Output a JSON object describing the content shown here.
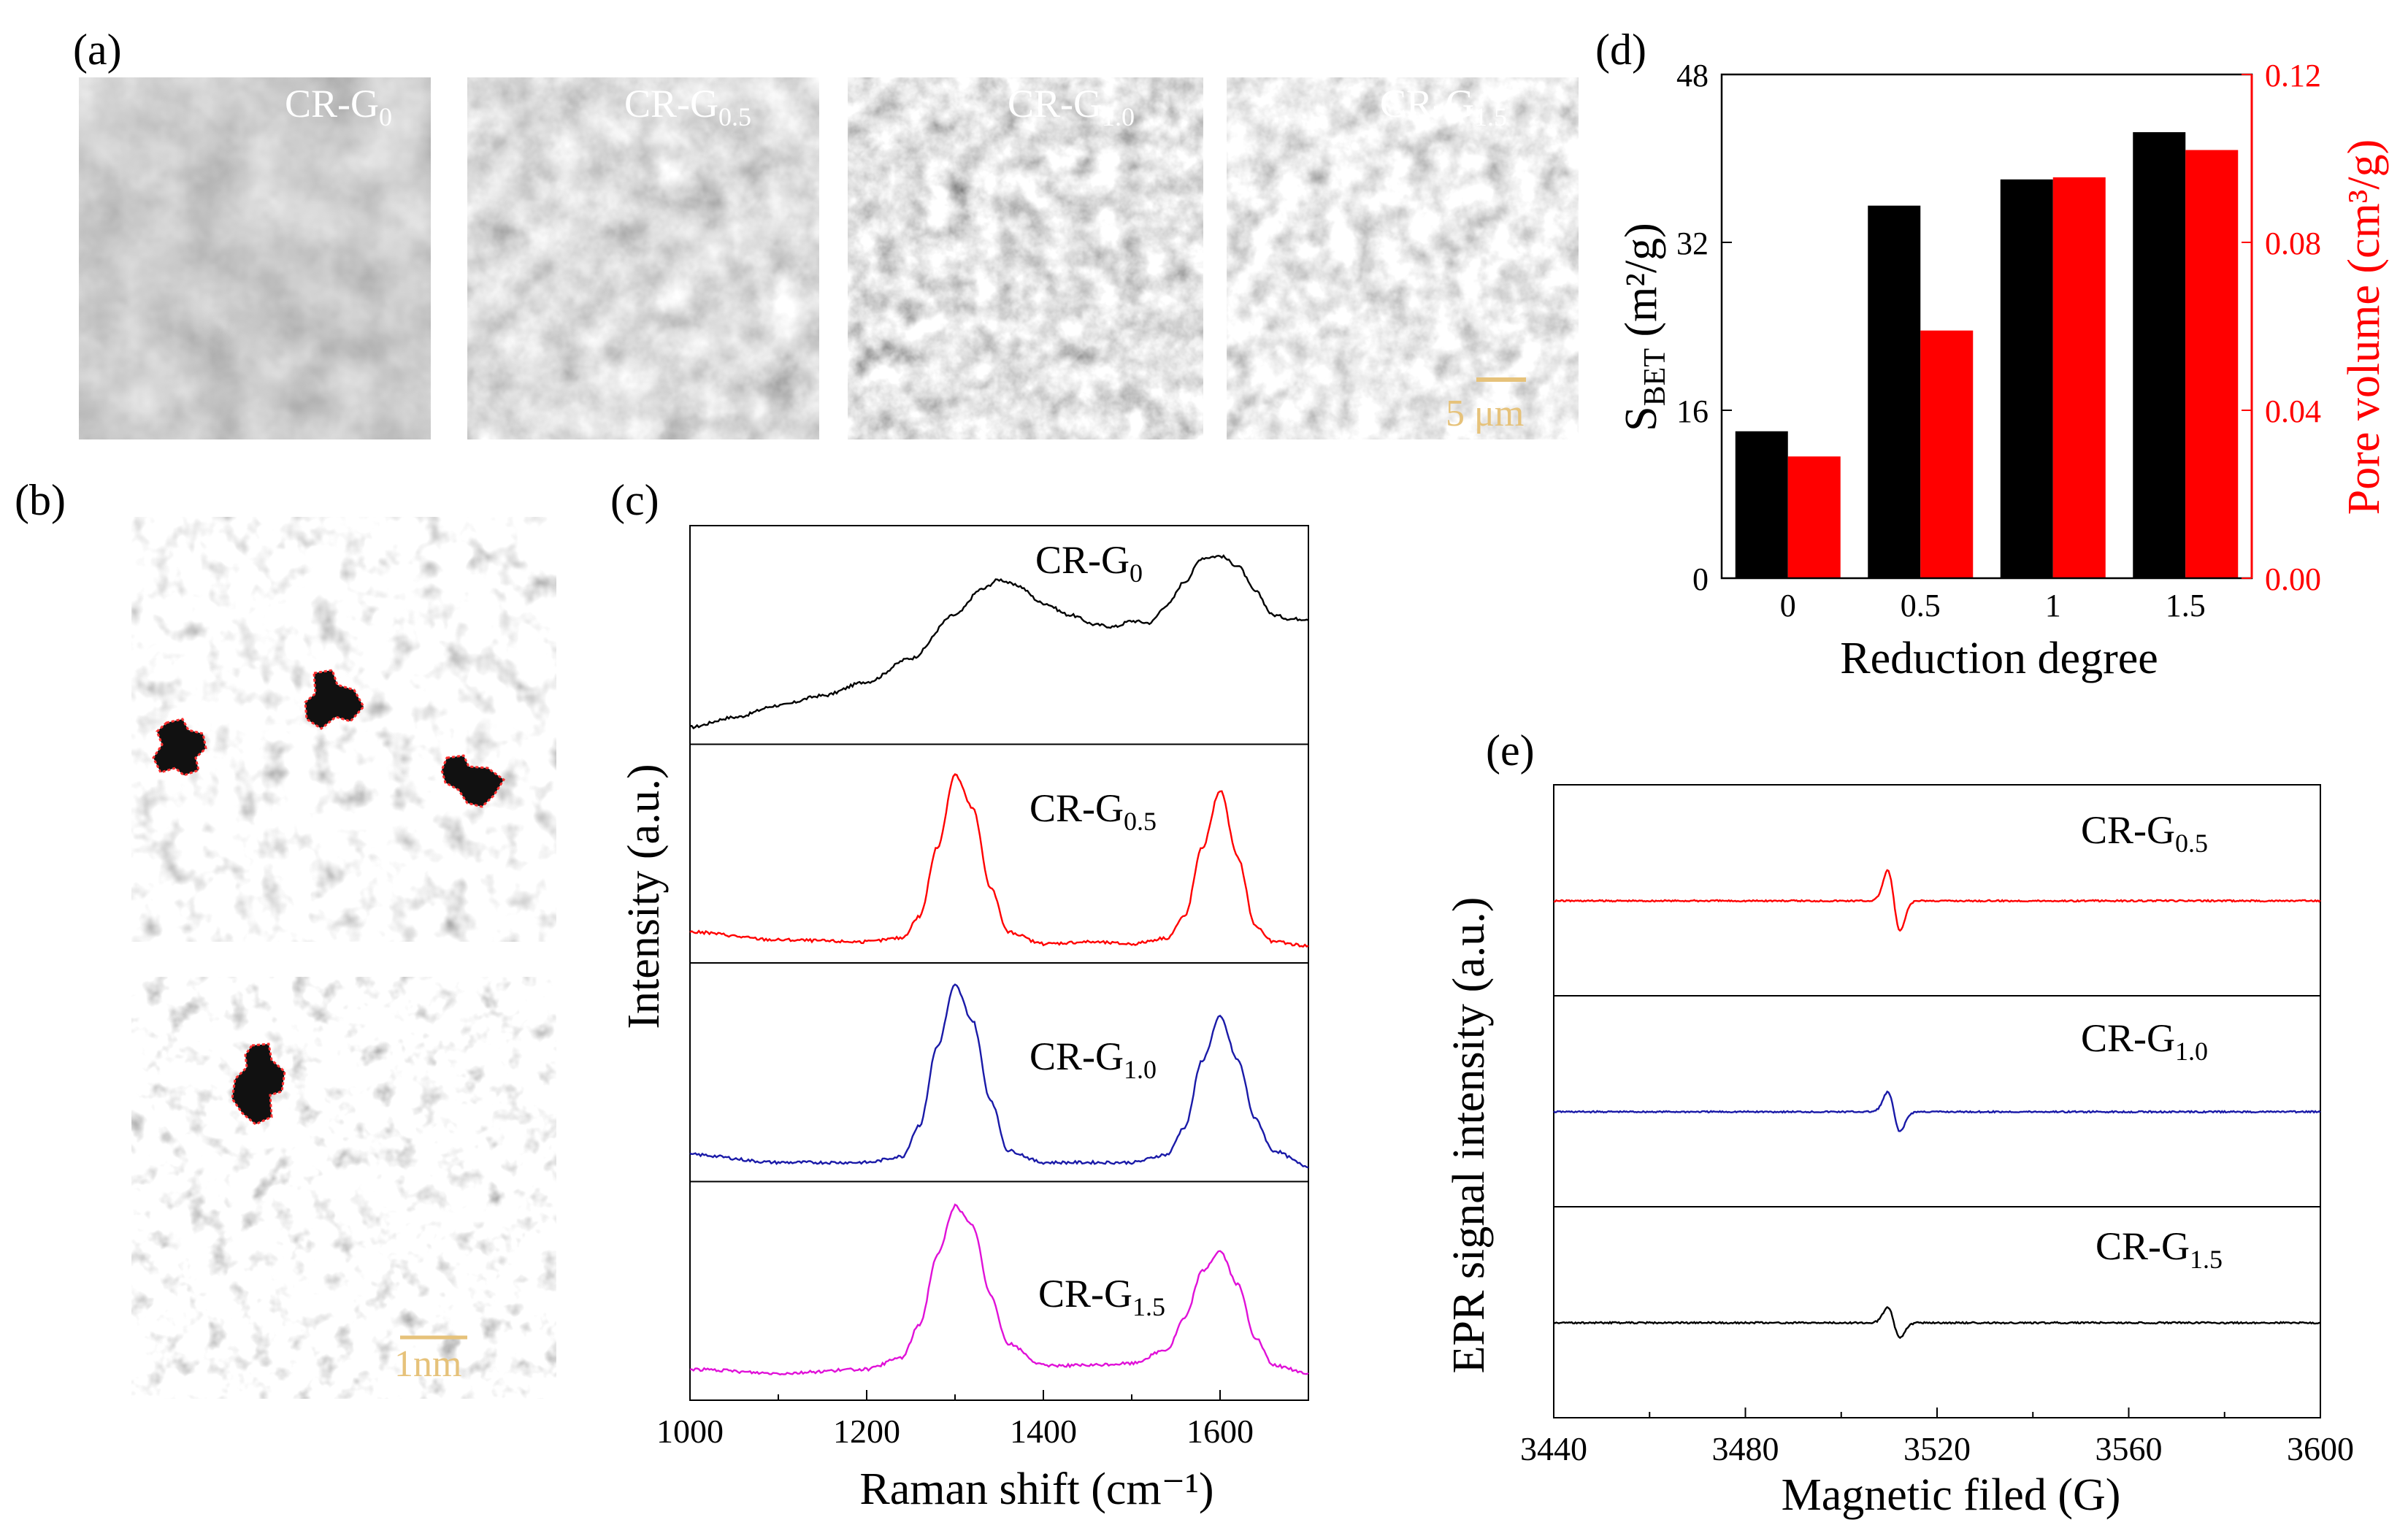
{
  "panel_labels": {
    "a": "(a)",
    "b": "(b)",
    "c": "(c)",
    "d": "(d)",
    "e": "(e)"
  },
  "sem_images": [
    {
      "label_main": "CR-G",
      "label_sub": "0"
    },
    {
      "label_main": "CR-G",
      "label_sub": "0.5"
    },
    {
      "label_main": "CR-G",
      "label_sub": "1.0"
    },
    {
      "label_main": "CR-G",
      "label_sub": "1.5"
    }
  ],
  "sem_scale_bar": "5 μm",
  "tem_scale_bar": "1nm",
  "colors": {
    "black": "#000000",
    "red": "#ff0000",
    "blue": "#1a1aa8",
    "magenta": "#e011d8",
    "scale_bar": "#e6c27a"
  },
  "chart_data": [
    {
      "id": "c",
      "type": "line",
      "title": "",
      "xlabel": "Raman shift (cm⁻¹)",
      "ylabel": "Intensity (a.u.)",
      "xlim": [
        1000,
        1700
      ],
      "xticks": [
        1000,
        1200,
        1400,
        1600
      ],
      "series": [
        {
          "name_main": "CR-G",
          "name_sub": "0",
          "color": "#000000",
          "x": [
            1000,
            1050,
            1100,
            1150,
            1200,
            1250,
            1300,
            1330,
            1350,
            1370,
            1400,
            1430,
            1460,
            1480,
            1500,
            1520,
            1540,
            1560,
            1580,
            1600,
            1620,
            1640,
            1660,
            1680,
            1700
          ],
          "y": [
            0.05,
            0.1,
            0.16,
            0.21,
            0.28,
            0.4,
            0.62,
            0.75,
            0.8,
            0.77,
            0.68,
            0.62,
            0.57,
            0.56,
            0.59,
            0.58,
            0.67,
            0.79,
            0.91,
            0.92,
            0.87,
            0.74,
            0.62,
            0.6,
            0.6
          ]
        },
        {
          "name_main": "CR-G",
          "name_sub": "0.5",
          "color": "#ff0000",
          "x": [
            1000,
            1100,
            1200,
            1240,
            1260,
            1280,
            1300,
            1320,
            1340,
            1360,
            1400,
            1450,
            1500,
            1540,
            1560,
            1580,
            1600,
            1620,
            1640,
            1660,
            1700
          ],
          "y": [
            0.12,
            0.08,
            0.07,
            0.09,
            0.2,
            0.55,
            0.92,
            0.75,
            0.35,
            0.12,
            0.06,
            0.07,
            0.06,
            0.09,
            0.2,
            0.55,
            0.84,
            0.5,
            0.15,
            0.07,
            0.05
          ]
        },
        {
          "name_main": "CR-G",
          "name_sub": "1.0",
          "color": "#1a1aa8",
          "x": [
            1000,
            1100,
            1200,
            1240,
            1260,
            1280,
            1300,
            1320,
            1340,
            1360,
            1400,
            1450,
            1500,
            1540,
            1560,
            1580,
            1600,
            1620,
            1640,
            1660,
            1700
          ],
          "y": [
            0.1,
            0.06,
            0.06,
            0.09,
            0.25,
            0.65,
            0.96,
            0.78,
            0.38,
            0.12,
            0.06,
            0.06,
            0.06,
            0.1,
            0.24,
            0.58,
            0.8,
            0.58,
            0.28,
            0.12,
            0.04
          ]
        },
        {
          "name_main": "CR-G",
          "name_sub": "1.5",
          "color": "#e011d8",
          "x": [
            1000,
            1100,
            1200,
            1240,
            1260,
            1280,
            1300,
            1320,
            1340,
            1360,
            1400,
            1450,
            1500,
            1540,
            1560,
            1580,
            1600,
            1620,
            1640,
            1660,
            1700
          ],
          "y": [
            0.12,
            0.1,
            0.12,
            0.18,
            0.35,
            0.7,
            0.95,
            0.85,
            0.5,
            0.25,
            0.14,
            0.14,
            0.15,
            0.22,
            0.38,
            0.62,
            0.72,
            0.55,
            0.28,
            0.14,
            0.1
          ]
        }
      ]
    },
    {
      "id": "d",
      "type": "bar",
      "title": "",
      "xlabel": "Reduction degree",
      "ylabel_main": "S",
      "ylabel_sub": "BET",
      "ylabel_unit": " (m²/g)",
      "y2label_main": "Pore volume (cm³/g)",
      "categories": [
        "0",
        "0.5",
        "1",
        "1.5"
      ],
      "ylim": [
        0,
        48
      ],
      "yticks": [
        0,
        16,
        32,
        48
      ],
      "y2lim": [
        0.0,
        0.12
      ],
      "y2ticks": [
        "0.00",
        "0.04",
        "0.08",
        "0.12"
      ],
      "series": [
        {
          "name": "S_BET",
          "axis": "left",
          "color": "#000000",
          "values": [
            14,
            35.5,
            38,
            42.5
          ]
        },
        {
          "name": "Pore volume",
          "axis": "right",
          "color": "#ff0000",
          "values": [
            0.029,
            0.059,
            0.0955,
            0.102
          ]
        }
      ]
    },
    {
      "id": "e",
      "type": "line",
      "title": "",
      "xlabel": "Magnetic filed (G)",
      "ylabel": "EPR signal intensity (a.u.)",
      "xlim": [
        3440,
        3600
      ],
      "xticks": [
        3440,
        3480,
        3520,
        3560,
        3600
      ],
      "series": [
        {
          "name_main": "CR-G",
          "name_sub": "0.5",
          "color": "#ff0000",
          "amplitude": 1.0
        },
        {
          "name_main": "CR-G",
          "name_sub": "1.0",
          "color": "#1a1aa8",
          "amplitude": 0.65
        },
        {
          "name_main": "CR-G",
          "name_sub": "1.5",
          "color": "#000000",
          "amplitude": 0.5
        }
      ],
      "center_field": 3511
    }
  ]
}
